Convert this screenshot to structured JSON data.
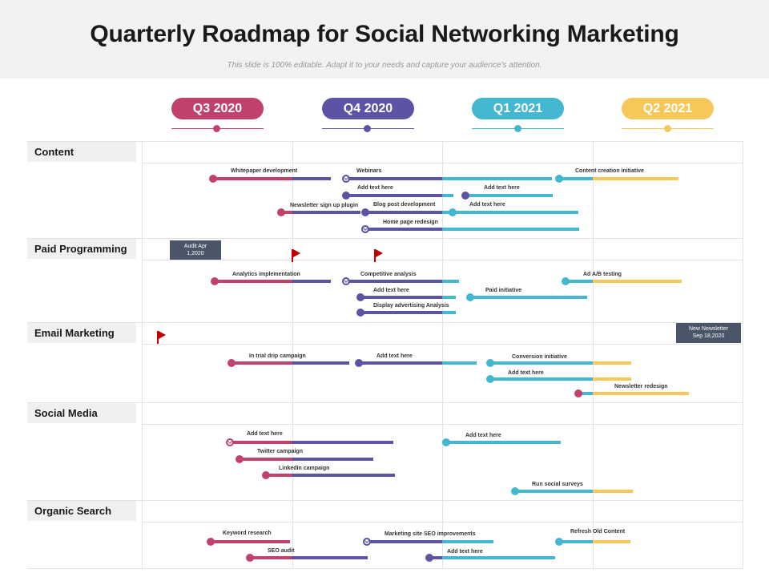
{
  "header": {
    "title": "Quarterly Roadmap for Social Networking Marketing",
    "subtitle": "This slide is 100% editable. Adapt it to your needs and capture your audience's attention."
  },
  "colors": {
    "q3": "#c0426b",
    "q4": "#5b53a3",
    "q1": "#44b7d0",
    "q2": "#f6c85a",
    "milestone": "#4a5568",
    "flag": "#c00000"
  },
  "quarters": [
    {
      "label": "Q3 2020",
      "color": "#c0426b"
    },
    {
      "label": "Q4 2020",
      "color": "#5b53a3"
    },
    {
      "label": "Q1 2021",
      "color": "#44b7d0"
    },
    {
      "label": "Q2 2021",
      "color": "#f6c85a"
    }
  ],
  "categories": [
    "Content",
    "Paid Programming",
    "Email Marketing",
    "Social Media",
    "Organic Search"
  ],
  "tasks": {
    "content": [
      {
        "label": "Whitepaper development",
        "start": "Q3 2020",
        "end": "Q4 2020"
      },
      {
        "label": "Webinars",
        "start": "Q4 2020",
        "end": "Q1 2021"
      },
      {
        "label": "Content creation initiative",
        "start": "Q1 2021",
        "end": "Q2 2021"
      },
      {
        "label": "Add text here",
        "start": "Q4 2020",
        "end": "Q1 2021"
      },
      {
        "label": "Add text here",
        "start": "Q1 2021",
        "end": "Q1 2021"
      },
      {
        "label": "Newsletter sign up plugin",
        "start": "Q3 2020",
        "end": "Q4 2020"
      },
      {
        "label": "Blog post development",
        "start": "Q4 2020",
        "end": "Q1 2021"
      },
      {
        "label": "Add text here",
        "start": "Q1 2021",
        "end": "Q1 2021"
      },
      {
        "label": "Home page redesign",
        "start": "Q4 2020",
        "end": "Q1 2021"
      }
    ],
    "paid_programming": [
      {
        "label": "Analytics implementation",
        "start": "Q3 2020",
        "end": "Q4 2020"
      },
      {
        "label": "Competitive analysis",
        "start": "Q4 2020",
        "end": "Q1 2021"
      },
      {
        "label": "Ad A/B testing",
        "start": "Q1 2021",
        "end": "Q2 2021"
      },
      {
        "label": "Add text here",
        "start": "Q4 2020",
        "end": "Q1 2021"
      },
      {
        "label": "Paid initiative",
        "start": "Q1 2021",
        "end": "Q1 2021"
      },
      {
        "label": "Display advertising Analysis",
        "start": "Q4 2020",
        "end": "Q1 2021"
      }
    ],
    "email_marketing": [
      {
        "label": "In trial drip campaign",
        "start": "Q3 2020",
        "end": "Q4 2020"
      },
      {
        "label": "Add text here",
        "start": "Q4 2020",
        "end": "Q1 2021"
      },
      {
        "label": "Conversion initiative",
        "start": "Q1 2021",
        "end": "Q2 2021"
      },
      {
        "label": "Add text here",
        "start": "Q1 2021",
        "end": "Q2 2021"
      },
      {
        "label": "Newsletter redesign",
        "start": "Q1 2021",
        "end": "Q2 2021"
      }
    ],
    "social_media": [
      {
        "label": "Add text here",
        "start": "Q3 2020",
        "end": "Q4 2020"
      },
      {
        "label": "Add text here",
        "start": "Q1 2021",
        "end": "Q1 2021"
      },
      {
        "label": "Twitter campaign",
        "start": "Q3 2020",
        "end": "Q4 2020"
      },
      {
        "label": "LinkedIn campaign",
        "start": "Q3 2020",
        "end": "Q4 2020"
      },
      {
        "label": "Run social surveys",
        "start": "Q1 2021",
        "end": "Q2 2021"
      }
    ],
    "organic_search": [
      {
        "label": "Keyword research",
        "start": "Q3 2020",
        "end": "Q3 2020"
      },
      {
        "label": "Marketing site SEO improvements",
        "start": "Q4 2020",
        "end": "Q1 2021"
      },
      {
        "label": "Refresh Old Content",
        "start": "Q1 2021",
        "end": "Q2 2021"
      },
      {
        "label": "SEO audit",
        "start": "Q3 2020",
        "end": "Q4 2020"
      },
      {
        "label": "Add text here",
        "start": "Q4 2020",
        "end": "Q1 2021"
      }
    ]
  },
  "milestones": {
    "audit": {
      "line1": "Audit Apr",
      "line2": "1,2020"
    },
    "newsletter": {
      "line1": "New Newsletter",
      "line2": "Sep 18,2020"
    }
  }
}
